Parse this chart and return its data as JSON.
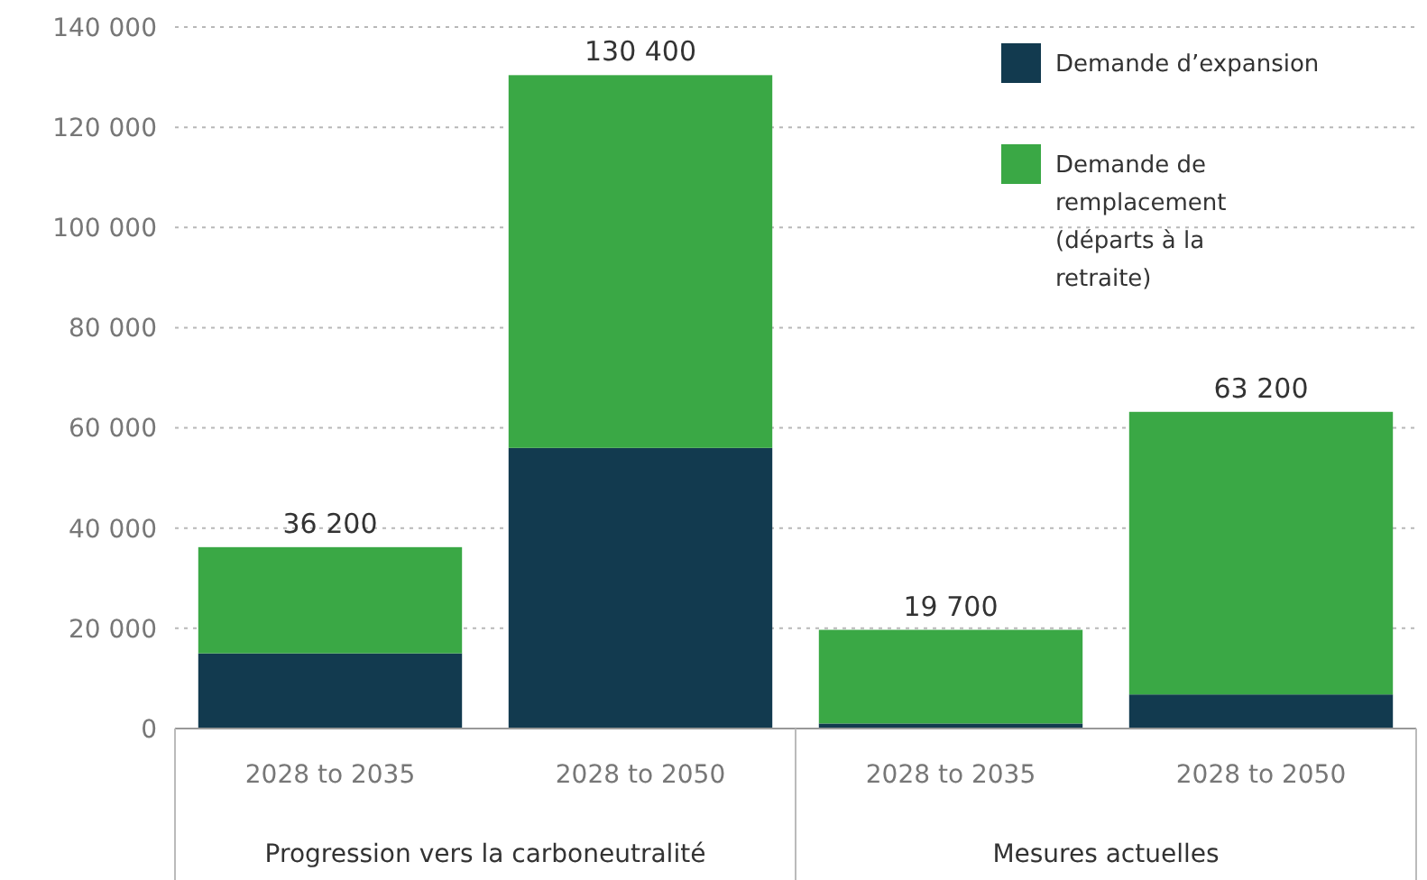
{
  "chart_data": {
    "type": "bar",
    "stacked": true,
    "categories": [
      "2028 to 2035",
      "2028 to 2050",
      "2028 to 2035",
      "2028 to 2050"
    ],
    "series": [
      {
        "name": "Demande d’expansion",
        "color": "#123a4f",
        "values": [
          15000,
          56000,
          1000,
          6800
        ]
      },
      {
        "name": "Demande de remplacement (départs à la retraite)",
        "color": "#3aa845",
        "values": [
          21200,
          74400,
          18700,
          56400
        ]
      }
    ],
    "totals": [
      "36 200",
      "130 400",
      "19 700",
      "63 200"
    ],
    "ylim": [
      0,
      140000
    ],
    "yticks": [
      {
        "value": 0,
        "label": "0"
      },
      {
        "value": 20000,
        "label": "20 000"
      },
      {
        "value": 40000,
        "label": "40 000"
      },
      {
        "value": 60000,
        "label": "60 000"
      },
      {
        "value": 80000,
        "label": "80 000"
      },
      {
        "value": 100000,
        "label": "100 000"
      },
      {
        "value": 120000,
        "label": "120 000"
      },
      {
        "value": 140000,
        "label": "140 000"
      }
    ],
    "grid": "y",
    "legend": "top right",
    "annotations": [
      "Progression vers la carboneutralité",
      "Mesures actuelles"
    ]
  }
}
